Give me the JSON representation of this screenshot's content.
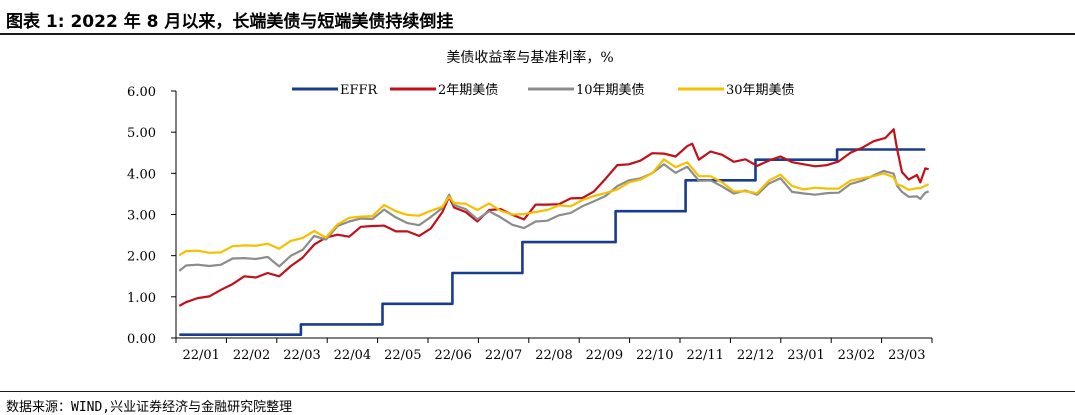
{
  "figure": {
    "title": "图表 1: 2022 年 8 月以来，长端美债与短端美债持续倒挂",
    "source": "数据来源：WIND,兴业证券经济与金融研究院整理"
  },
  "chart_data": {
    "type": "line",
    "title": "美债收益率与基准利率，%",
    "xlabel": "",
    "ylabel": "",
    "ylim": [
      0,
      6
    ],
    "yticks": [
      "0.00",
      "1.00",
      "2.00",
      "3.00",
      "4.00",
      "5.00",
      "6.00"
    ],
    "xticks": [
      "22/01",
      "22/02",
      "22/03",
      "22/04",
      "22/05",
      "22/06",
      "22/07",
      "22/08",
      "22/09",
      "22/10",
      "22/11",
      "22/12",
      "23/01",
      "23/02",
      "23/03"
    ],
    "xlim": [
      "2022-01-01",
      "2023-03-31"
    ],
    "grid": false,
    "legend": "top",
    "series": [
      {
        "name": "EFFR",
        "color": "#1a3c8f",
        "step": true,
        "points": [
          [
            "2022-01-03",
            0.08
          ],
          [
            "2022-03-17",
            0.33
          ],
          [
            "2022-05-05",
            0.83
          ],
          [
            "2022-06-16",
            1.58
          ],
          [
            "2022-07-28",
            2.33
          ],
          [
            "2022-09-22",
            3.08
          ],
          [
            "2022-11-03",
            3.83
          ],
          [
            "2022-12-15",
            4.33
          ],
          [
            "2023-02-02",
            4.58
          ],
          [
            "2023-03-27",
            4.58
          ]
        ]
      },
      {
        "name": "2年期美债",
        "color": "#c0101a",
        "points": [
          [
            "2022-01-03",
            0.78
          ],
          [
            "2022-01-07",
            0.87
          ],
          [
            "2022-01-14",
            0.97
          ],
          [
            "2022-01-21",
            1.01
          ],
          [
            "2022-01-28",
            1.17
          ],
          [
            "2022-02-04",
            1.31
          ],
          [
            "2022-02-11",
            1.5
          ],
          [
            "2022-02-18",
            1.47
          ],
          [
            "2022-02-25",
            1.58
          ],
          [
            "2022-03-04",
            1.5
          ],
          [
            "2022-03-11",
            1.75
          ],
          [
            "2022-03-18",
            1.95
          ],
          [
            "2022-03-25",
            2.27
          ],
          [
            "2022-04-01",
            2.44
          ],
          [
            "2022-04-08",
            2.51
          ],
          [
            "2022-04-15",
            2.46
          ],
          [
            "2022-04-22",
            2.7
          ],
          [
            "2022-04-29",
            2.72
          ],
          [
            "2022-05-06",
            2.73
          ],
          [
            "2022-05-13",
            2.59
          ],
          [
            "2022-05-20",
            2.59
          ],
          [
            "2022-05-27",
            2.48
          ],
          [
            "2022-06-03",
            2.66
          ],
          [
            "2022-06-10",
            3.06
          ],
          [
            "2022-06-14",
            3.43
          ],
          [
            "2022-06-17",
            3.17
          ],
          [
            "2022-06-24",
            3.06
          ],
          [
            "2022-07-01",
            2.83
          ],
          [
            "2022-07-08",
            3.11
          ],
          [
            "2022-07-15",
            3.13
          ],
          [
            "2022-07-22",
            2.99
          ],
          [
            "2022-07-29",
            2.88
          ],
          [
            "2022-08-05",
            3.24
          ],
          [
            "2022-08-12",
            3.24
          ],
          [
            "2022-08-19",
            3.25
          ],
          [
            "2022-08-26",
            3.39
          ],
          [
            "2022-09-02",
            3.4
          ],
          [
            "2022-09-09",
            3.56
          ],
          [
            "2022-09-16",
            3.87
          ],
          [
            "2022-09-23",
            4.2
          ],
          [
            "2022-09-30",
            4.22
          ],
          [
            "2022-10-07",
            4.31
          ],
          [
            "2022-10-14",
            4.49
          ],
          [
            "2022-10-21",
            4.48
          ],
          [
            "2022-10-28",
            4.41
          ],
          [
            "2022-11-04",
            4.66
          ],
          [
            "2022-11-07",
            4.72
          ],
          [
            "2022-11-11",
            4.33
          ],
          [
            "2022-11-18",
            4.53
          ],
          [
            "2022-11-25",
            4.45
          ],
          [
            "2022-12-02",
            4.28
          ],
          [
            "2022-12-09",
            4.34
          ],
          [
            "2022-12-16",
            4.18
          ],
          [
            "2022-12-23",
            4.31
          ],
          [
            "2022-12-30",
            4.41
          ],
          [
            "2023-01-06",
            4.27
          ],
          [
            "2023-01-13",
            4.22
          ],
          [
            "2023-01-20",
            4.17
          ],
          [
            "2023-01-27",
            4.2
          ],
          [
            "2023-02-03",
            4.29
          ],
          [
            "2023-02-10",
            4.5
          ],
          [
            "2023-02-17",
            4.62
          ],
          [
            "2023-02-24",
            4.78
          ],
          [
            "2023-03-03",
            4.86
          ],
          [
            "2023-03-08",
            5.07
          ],
          [
            "2023-03-10",
            4.6
          ],
          [
            "2023-03-13",
            4.03
          ],
          [
            "2023-03-17",
            3.85
          ],
          [
            "2023-03-22",
            3.96
          ],
          [
            "2023-03-24",
            3.78
          ],
          [
            "2023-03-27",
            4.12
          ],
          [
            "2023-03-29",
            4.1
          ]
        ]
      },
      {
        "name": "10年期美债",
        "color": "#8c8c8c",
        "points": [
          [
            "2022-01-03",
            1.63
          ],
          [
            "2022-01-07",
            1.76
          ],
          [
            "2022-01-14",
            1.78
          ],
          [
            "2022-01-21",
            1.75
          ],
          [
            "2022-01-28",
            1.78
          ],
          [
            "2022-02-04",
            1.93
          ],
          [
            "2022-02-11",
            1.94
          ],
          [
            "2022-02-18",
            1.92
          ],
          [
            "2022-02-25",
            1.97
          ],
          [
            "2022-03-04",
            1.74
          ],
          [
            "2022-03-11",
            2.0
          ],
          [
            "2022-03-18",
            2.14
          ],
          [
            "2022-03-25",
            2.48
          ],
          [
            "2022-04-01",
            2.39
          ],
          [
            "2022-04-08",
            2.72
          ],
          [
            "2022-04-15",
            2.83
          ],
          [
            "2022-04-22",
            2.9
          ],
          [
            "2022-04-29",
            2.89
          ],
          [
            "2022-05-06",
            3.12
          ],
          [
            "2022-05-13",
            2.93
          ],
          [
            "2022-05-20",
            2.79
          ],
          [
            "2022-05-27",
            2.74
          ],
          [
            "2022-06-03",
            2.94
          ],
          [
            "2022-06-10",
            3.16
          ],
          [
            "2022-06-14",
            3.48
          ],
          [
            "2022-06-17",
            3.23
          ],
          [
            "2022-06-24",
            3.13
          ],
          [
            "2022-07-01",
            2.88
          ],
          [
            "2022-07-08",
            3.08
          ],
          [
            "2022-07-15",
            2.93
          ],
          [
            "2022-07-22",
            2.75
          ],
          [
            "2022-07-29",
            2.67
          ],
          [
            "2022-08-05",
            2.83
          ],
          [
            "2022-08-12",
            2.85
          ],
          [
            "2022-08-19",
            2.98
          ],
          [
            "2022-08-26",
            3.04
          ],
          [
            "2022-09-02",
            3.2
          ],
          [
            "2022-09-09",
            3.32
          ],
          [
            "2022-09-16",
            3.45
          ],
          [
            "2022-09-23",
            3.69
          ],
          [
            "2022-09-30",
            3.83
          ],
          [
            "2022-10-07",
            3.88
          ],
          [
            "2022-10-14",
            4.0
          ],
          [
            "2022-10-21",
            4.22
          ],
          [
            "2022-10-28",
            4.01
          ],
          [
            "2022-11-04",
            4.16
          ],
          [
            "2022-11-11",
            3.82
          ],
          [
            "2022-11-18",
            3.83
          ],
          [
            "2022-11-25",
            3.68
          ],
          [
            "2022-12-02",
            3.51
          ],
          [
            "2022-12-09",
            3.58
          ],
          [
            "2022-12-16",
            3.48
          ],
          [
            "2022-12-23",
            3.75
          ],
          [
            "2022-12-30",
            3.88
          ],
          [
            "2023-01-06",
            3.55
          ],
          [
            "2023-01-13",
            3.51
          ],
          [
            "2023-01-20",
            3.48
          ],
          [
            "2023-01-27",
            3.52
          ],
          [
            "2023-02-03",
            3.53
          ],
          [
            "2023-02-10",
            3.74
          ],
          [
            "2023-02-17",
            3.82
          ],
          [
            "2023-02-24",
            3.95
          ],
          [
            "2023-03-02",
            4.06
          ],
          [
            "2023-03-08",
            3.99
          ],
          [
            "2023-03-10",
            3.7
          ],
          [
            "2023-03-13",
            3.55
          ],
          [
            "2023-03-17",
            3.43
          ],
          [
            "2023-03-22",
            3.44
          ],
          [
            "2023-03-24",
            3.38
          ],
          [
            "2023-03-27",
            3.53
          ],
          [
            "2023-03-29",
            3.56
          ]
        ]
      },
      {
        "name": "30年期美债",
        "color": "#f5c000",
        "points": [
          [
            "2022-01-03",
            2.01
          ],
          [
            "2022-01-07",
            2.11
          ],
          [
            "2022-01-14",
            2.12
          ],
          [
            "2022-01-21",
            2.07
          ],
          [
            "2022-01-28",
            2.08
          ],
          [
            "2022-02-04",
            2.23
          ],
          [
            "2022-02-11",
            2.25
          ],
          [
            "2022-02-18",
            2.24
          ],
          [
            "2022-02-25",
            2.29
          ],
          [
            "2022-03-04",
            2.17
          ],
          [
            "2022-03-11",
            2.36
          ],
          [
            "2022-03-18",
            2.43
          ],
          [
            "2022-03-25",
            2.6
          ],
          [
            "2022-04-01",
            2.44
          ],
          [
            "2022-04-08",
            2.76
          ],
          [
            "2022-04-15",
            2.92
          ],
          [
            "2022-04-22",
            2.95
          ],
          [
            "2022-04-29",
            2.96
          ],
          [
            "2022-05-06",
            3.23
          ],
          [
            "2022-05-13",
            3.08
          ],
          [
            "2022-05-20",
            2.99
          ],
          [
            "2022-05-27",
            2.97
          ],
          [
            "2022-06-03",
            3.09
          ],
          [
            "2022-06-10",
            3.19
          ],
          [
            "2022-06-14",
            3.43
          ],
          [
            "2022-06-17",
            3.28
          ],
          [
            "2022-06-24",
            3.26
          ],
          [
            "2022-07-01",
            3.11
          ],
          [
            "2022-07-08",
            3.27
          ],
          [
            "2022-07-15",
            3.09
          ],
          [
            "2022-07-22",
            3.0
          ],
          [
            "2022-07-29",
            3.01
          ],
          [
            "2022-08-05",
            3.06
          ],
          [
            "2022-08-12",
            3.11
          ],
          [
            "2022-08-19",
            3.22
          ],
          [
            "2022-08-26",
            3.2
          ],
          [
            "2022-09-02",
            3.35
          ],
          [
            "2022-09-09",
            3.45
          ],
          [
            "2022-09-16",
            3.52
          ],
          [
            "2022-09-23",
            3.61
          ],
          [
            "2022-09-30",
            3.78
          ],
          [
            "2022-10-07",
            3.85
          ],
          [
            "2022-10-14",
            4.0
          ],
          [
            "2022-10-21",
            4.34
          ],
          [
            "2022-10-28",
            4.15
          ],
          [
            "2022-11-04",
            4.27
          ],
          [
            "2022-11-11",
            3.93
          ],
          [
            "2022-11-18",
            3.93
          ],
          [
            "2022-11-25",
            3.78
          ],
          [
            "2022-12-02",
            3.56
          ],
          [
            "2022-12-09",
            3.56
          ],
          [
            "2022-12-16",
            3.52
          ],
          [
            "2022-12-23",
            3.82
          ],
          [
            "2022-12-30",
            3.97
          ],
          [
            "2023-01-06",
            3.69
          ],
          [
            "2023-01-13",
            3.61
          ],
          [
            "2023-01-20",
            3.65
          ],
          [
            "2023-01-27",
            3.63
          ],
          [
            "2023-02-03",
            3.63
          ],
          [
            "2023-02-10",
            3.82
          ],
          [
            "2023-02-17",
            3.88
          ],
          [
            "2023-02-24",
            3.93
          ],
          [
            "2023-03-02",
            4.0
          ],
          [
            "2023-03-08",
            3.9
          ],
          [
            "2023-03-10",
            3.73
          ],
          [
            "2023-03-13",
            3.69
          ],
          [
            "2023-03-17",
            3.6
          ],
          [
            "2023-03-22",
            3.64
          ],
          [
            "2023-03-24",
            3.64
          ],
          [
            "2023-03-27",
            3.7
          ],
          [
            "2023-03-29",
            3.73
          ]
        ]
      }
    ]
  }
}
